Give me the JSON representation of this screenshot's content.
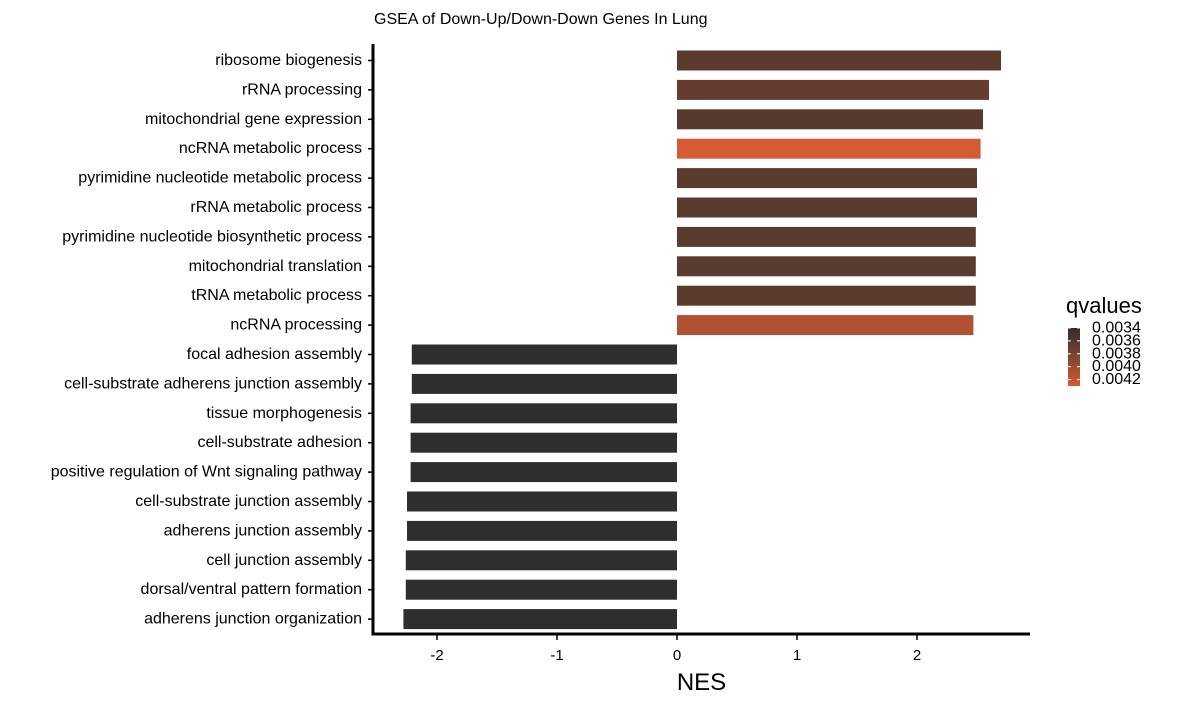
{
  "chart_data": {
    "type": "bar",
    "orientation": "horizontal",
    "title": "GSEA of Down-Up/Down-Down Genes In Lung",
    "xlabel": "NES",
    "ylabel": "",
    "xlim": [
      -2.5,
      2.95
    ],
    "xticks": [
      -2,
      -1,
      0,
      1,
      2
    ],
    "xtick_labels": [
      "-2",
      "-1",
      "0",
      "1",
      "2"
    ],
    "grid": false,
    "legend_position": "right",
    "categories": [
      "ribosome biogenesis",
      "rRNA processing",
      "mitochondrial gene expression",
      "ncRNA metabolic process",
      "pyrimidine nucleotide metabolic process",
      "rRNA metabolic process",
      "pyrimidine nucleotide biosynthetic process",
      "mitochondrial translation",
      "tRNA metabolic process",
      "ncRNA processing",
      "focal adhesion assembly",
      "cell-substrate adherens junction assembly",
      "tissue morphogenesis",
      "cell-substrate adhesion",
      "positive regulation of Wnt signaling pathway",
      "cell-substrate junction assembly",
      "adherens junction assembly",
      "cell junction assembly",
      "dorsal/ventral pattern formation",
      "adherens junction organization"
    ],
    "values": [
      2.7,
      2.6,
      2.55,
      2.53,
      2.5,
      2.5,
      2.49,
      2.49,
      2.49,
      2.47,
      -2.21,
      -2.21,
      -2.22,
      -2.22,
      -2.22,
      -2.25,
      -2.25,
      -2.26,
      -2.26,
      -2.28
    ],
    "qvalues": [
      0.00365,
      0.0037,
      0.00362,
      0.0043,
      0.00365,
      0.00365,
      0.00365,
      0.00365,
      0.00365,
      0.0041,
      0.0034,
      0.0034,
      0.0034,
      0.0034,
      0.0034,
      0.0034,
      0.0034,
      0.0034,
      0.0034,
      0.0034
    ],
    "color_scale": {
      "title": "qvalues",
      "low_value": 0.0034,
      "high_value": 0.0043,
      "low_color": "#2e2e2e",
      "high_color": "#d45b33",
      "breaks": [
        0.0034,
        0.0036,
        0.0038,
        0.004,
        0.0042
      ],
      "break_labels": [
        "0.0034",
        "0.0036",
        "0.0038",
        "0.0040",
        "0.0042"
      ]
    }
  }
}
